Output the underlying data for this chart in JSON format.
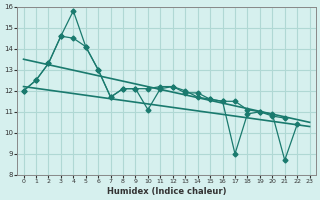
{
  "xlabel": "Humidex (Indice chaleur)",
  "ylabel": "",
  "background_color": "#d6f0ee",
  "line_color": "#1a7a6e",
  "grid_color": "#b0d8d4",
  "x_values": [
    0,
    1,
    2,
    3,
    4,
    5,
    6,
    7,
    8,
    9,
    10,
    11,
    12,
    13,
    14,
    15,
    16,
    17,
    18,
    19,
    20,
    21,
    22,
    23
  ],
  "series1": [
    12.0,
    12.5,
    13.3,
    14.6,
    15.8,
    14.1,
    13.0,
    11.7,
    12.1,
    12.1,
    11.1,
    12.1,
    12.2,
    12.0,
    11.7,
    11.6,
    11.5,
    9.0,
    10.9,
    11.0,
    10.9,
    8.7,
    10.4,
    null
  ],
  "series2": [
    12.0,
    12.5,
    13.3,
    14.6,
    14.5,
    14.1,
    13.0,
    11.7,
    12.1,
    12.1,
    12.1,
    12.2,
    12.2,
    11.9,
    11.9,
    11.6,
    11.5,
    11.5,
    11.1,
    11.0,
    10.8,
    10.7,
    null,
    null
  ],
  "trend1_x": [
    0,
    23
  ],
  "trend1_y": [
    13.5,
    10.5
  ],
  "trend2_x": [
    0,
    23
  ],
  "trend2_y": [
    12.2,
    10.3
  ],
  "xlim": [
    -0.5,
    23.5
  ],
  "ylim": [
    8,
    16
  ],
  "yticks": [
    8,
    9,
    10,
    11,
    12,
    13,
    14,
    15,
    16
  ],
  "xticks": [
    0,
    1,
    2,
    3,
    4,
    5,
    6,
    7,
    8,
    9,
    10,
    11,
    12,
    13,
    14,
    15,
    16,
    17,
    18,
    19,
    20,
    21,
    22,
    23
  ]
}
